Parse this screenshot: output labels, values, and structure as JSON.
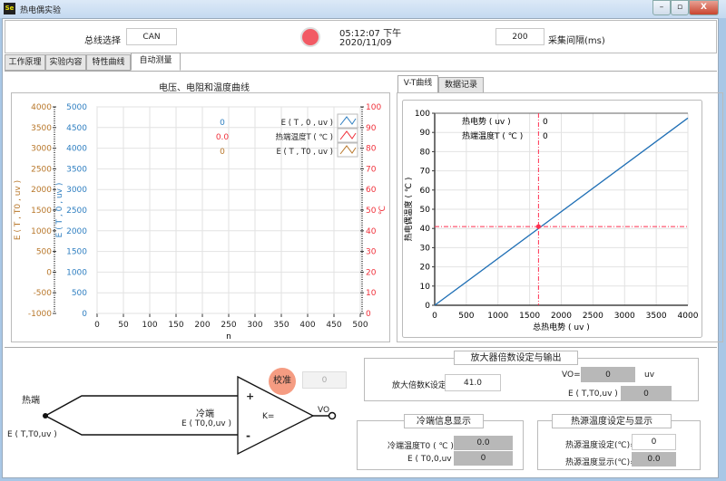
{
  "window": {
    "title": "热电偶实验",
    "icon": "Se"
  },
  "header": {
    "bus_label": "总线选择",
    "bus_value": "CAN",
    "time": "05:12:07 下午",
    "date": "2020/11/09",
    "interval_value": "200",
    "interval_label": "采集间隔(ms)",
    "status_led_color": "#f25a64"
  },
  "tabs": [
    {
      "label": "工作原理"
    },
    {
      "label": "实验内容"
    },
    {
      "label": "特性曲线"
    },
    {
      "label": "自动测量",
      "active": true
    }
  ],
  "subtabs": [
    {
      "label": "V-T曲线",
      "active": true
    },
    {
      "label": "数据记录"
    }
  ],
  "chart_data": [
    {
      "type": "line",
      "title": "电压、电阻和温度曲线",
      "xlabel": "n",
      "xlim": [
        0,
        500
      ],
      "xticks": [
        0,
        50,
        100,
        150,
        200,
        250,
        300,
        350,
        400,
        450,
        500
      ],
      "axes": [
        {
          "label": "E ( T , T0 , uv )",
          "ylim": [
            -1000,
            4000
          ],
          "ticks": [
            -1000,
            -500,
            0,
            500,
            1000,
            1500,
            2000,
            2500,
            3000,
            3500,
            4000
          ],
          "color": "#b8772a"
        },
        {
          "label": "E ( T , 0 , uv )",
          "ylim": [
            0,
            5000
          ],
          "ticks": [
            0,
            500,
            1000,
            1500,
            2000,
            2500,
            3000,
            3500,
            4000,
            4500,
            5000
          ],
          "color": "#2f7fc1"
        },
        {
          "label": "℃",
          "ylim": [
            0,
            100
          ],
          "ticks": [
            0,
            10,
            20,
            30,
            40,
            50,
            60,
            70,
            80,
            90,
            100
          ],
          "color": "#f0303a"
        }
      ],
      "series": [
        {
          "name": "E ( T , 0 , uv )",
          "value": "0",
          "color": "#2f7fc1",
          "values": []
        },
        {
          "name": "热端温度T ( ℃ )",
          "value": "0.0",
          "color": "#f0303a",
          "values": []
        },
        {
          "name": "E ( T , T0 , uv )",
          "value": "0",
          "color": "#b8772a",
          "values": []
        }
      ],
      "grid": true,
      "legend": "top-right"
    },
    {
      "type": "line",
      "xlabel": "总热电势 ( uv )",
      "ylabel": "热电偶温度 ( ℃ )",
      "xlim": [
        0,
        4000
      ],
      "ylim": [
        0,
        100
      ],
      "xticks": [
        0,
        500,
        1000,
        1500,
        2000,
        2500,
        3000,
        3500,
        4000
      ],
      "yticks": [
        0,
        10,
        20,
        30,
        40,
        50,
        60,
        70,
        80,
        90,
        100
      ],
      "series": [
        {
          "x": [
            0,
            4000
          ],
          "y": [
            0,
            97.5
          ],
          "color": "#1f6fb5"
        }
      ],
      "cursor": {
        "x": 1640,
        "y": 41,
        "color": "#ff3050"
      },
      "readouts": [
        {
          "label": "热电势 ( uv )",
          "value": "0"
        },
        {
          "label": "热端温度T ( ℃ )",
          "value": "0"
        }
      ],
      "grid": true
    }
  ],
  "diagram": {
    "hot_end": "热端",
    "hot_emf": "E ( T,T0,uv )",
    "cold_end": "冷端",
    "cold_emf": "E ( T0,0,uv )",
    "plus": "+",
    "minus": "-",
    "gain": "K=",
    "output": "VO",
    "calibrate": "校准",
    "calib_value": "0"
  },
  "amp": {
    "title": "放大器倍数设定与输出",
    "k_label": "放大倍数K设定=",
    "k_value": "41.0",
    "vo_label": "VO=",
    "vo_value": "0",
    "vo_unit": "uv",
    "e_label": "E ( T,T0,uv ) =",
    "e_value": "0"
  },
  "cold": {
    "title": "冷端信息显示",
    "t0_label": "冷端温度T0 ( ℃ ) =",
    "t0_value": "0.0",
    "e_label": "E ( T0,0,uv ) =",
    "e_value": "0"
  },
  "heat": {
    "title": "热源温度设定与显示",
    "set_label": "热源温度设定(℃)=",
    "set_value": "0",
    "show_label": "热源温度显示(℃)=",
    "show_value": "0.0"
  }
}
